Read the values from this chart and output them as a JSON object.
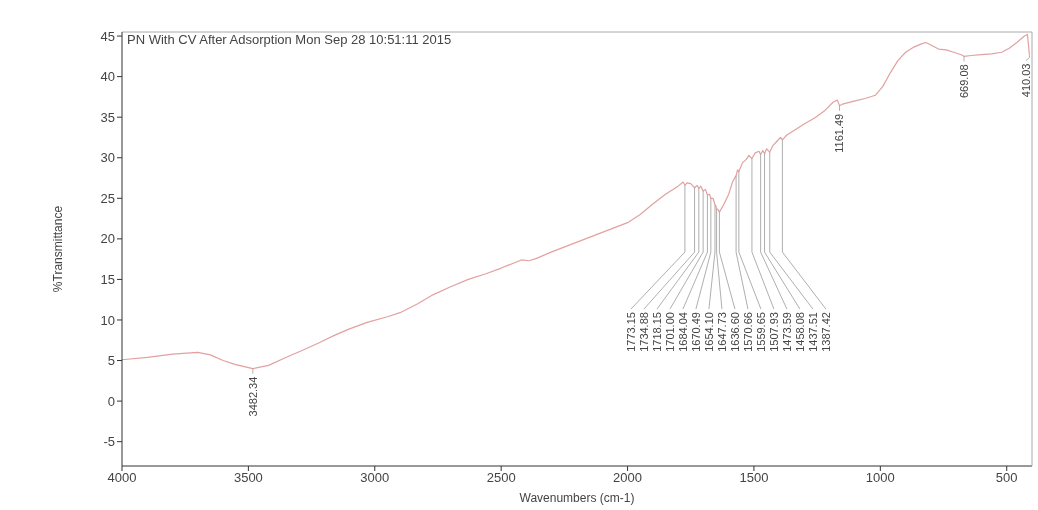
{
  "chart_data": {
    "type": "line",
    "title": "PN With CV After Adsorption Mon Sep 28 10:51:11 2015",
    "xlabel": "Wavenumbers (cm-1)",
    "ylabel": "%Transmittance",
    "color": "#e3a0a0",
    "x": [
      4000,
      3900,
      3800,
      3700,
      3650,
      3600,
      3550,
      3482.34,
      3420,
      3350,
      3290,
      3220,
      3160,
      3100,
      3030,
      2950,
      2900,
      2830,
      2770,
      2700,
      2630,
      2560,
      2500,
      2420,
      2390,
      2360,
      2300,
      2200,
      2100,
      2000,
      1950,
      1900,
      1850,
      1800,
      1780,
      1773.15,
      1765,
      1750,
      1734.88,
      1725,
      1718.15,
      1710,
      1701,
      1692,
      1684.04,
      1676,
      1670.49,
      1662,
      1654.1,
      1650,
      1647.73,
      1642,
      1636.6,
      1620,
      1600,
      1585,
      1570.66,
      1565,
      1559.65,
      1545,
      1530,
      1520,
      1507.93,
      1495,
      1480,
      1473.59,
      1465,
      1458.08,
      1450,
      1437.51,
      1425,
      1410,
      1395,
      1387.42,
      1370,
      1340,
      1300,
      1260,
      1220,
      1185,
      1170,
      1161.49,
      1150,
      1100,
      1060,
      1020,
      990,
      960,
      930,
      900,
      870,
      840,
      820,
      800,
      770,
      740,
      710,
      680,
      669.08,
      640,
      600,
      560,
      520,
      490,
      460,
      430,
      418,
      410.03
    ],
    "values": [
      5.1,
      5.4,
      5.8,
      6.0,
      5.7,
      5.0,
      4.5,
      4.0,
      4.4,
      5.4,
      6.2,
      7.2,
      8.1,
      8.9,
      9.7,
      10.4,
      10.9,
      12.0,
      13.1,
      14.1,
      15.0,
      15.7,
      16.4,
      17.4,
      17.3,
      17.6,
      18.4,
      19.6,
      20.8,
      22.0,
      23.0,
      24.3,
      25.5,
      26.5,
      27.0,
      26.6,
      26.9,
      26.8,
      26.3,
      26.6,
      26.2,
      26.5,
      25.9,
      26.1,
      25.4,
      25.5,
      25.0,
      25.0,
      24.2,
      24.0,
      23.7,
      23.6,
      23.3,
      24.2,
      25.5,
      27.0,
      27.8,
      28.5,
      28.3,
      29.4,
      29.8,
      30.3,
      29.9,
      30.6,
      30.8,
      30.4,
      30.9,
      30.5,
      31.1,
      30.7,
      31.5,
      32.0,
      32.5,
      32.2,
      32.8,
      33.4,
      34.2,
      34.9,
      35.8,
      36.9,
      37.1,
      36.4,
      36.6,
      37.0,
      37.3,
      37.7,
      38.8,
      40.5,
      42.0,
      43.0,
      43.6,
      44.0,
      44.2,
      43.9,
      43.4,
      43.3,
      43.0,
      42.7,
      42.5,
      42.6,
      42.7,
      42.8,
      43.0,
      43.5,
      44.2,
      45.0,
      45.2,
      42.6
    ],
    "xlim": [
      4000,
      400
    ],
    "xticks": [
      4000,
      3500,
      3000,
      2500,
      2000,
      1500,
      1000,
      500
    ],
    "ylim": [
      -8,
      45.5
    ],
    "yticks": [
      -5,
      0,
      5,
      10,
      15,
      20,
      25,
      30,
      35,
      40,
      45
    ],
    "annotations": [
      {
        "text": "3482.34",
        "x": 3482.34,
        "y": 4.0
      },
      {
        "text": "1773.15",
        "x": 1773.15,
        "y": 26.6
      },
      {
        "text": "1734.88",
        "x": 1734.88,
        "y": 26.3
      },
      {
        "text": "1718.15",
        "x": 1718.15,
        "y": 26.2
      },
      {
        "text": "1701.00",
        "x": 1701,
        "y": 25.9
      },
      {
        "text": "1684.04",
        "x": 1684.04,
        "y": 25.4
      },
      {
        "text": "1670.49",
        "x": 1670.49,
        "y": 25.0
      },
      {
        "text": "1654.10",
        "x": 1654.1,
        "y": 24.2
      },
      {
        "text": "1647.73",
        "x": 1647.73,
        "y": 23.7
      },
      {
        "text": "1636.60",
        "x": 1636.6,
        "y": 23.3
      },
      {
        "text": "1570.66",
        "x": 1570.66,
        "y": 27.8
      },
      {
        "text": "1559.65",
        "x": 1559.65,
        "y": 28.3
      },
      {
        "text": "1507.93",
        "x": 1507.93,
        "y": 29.9
      },
      {
        "text": "1473.59",
        "x": 1473.59,
        "y": 30.4
      },
      {
        "text": "1458.08",
        "x": 1458.08,
        "y": 30.5
      },
      {
        "text": "1437.51",
        "x": 1437.51,
        "y": 30.7
      },
      {
        "text": "1387.42",
        "x": 1387.42,
        "y": 32.2
      },
      {
        "text": "1161.49",
        "x": 1161.49,
        "y": 36.4
      },
      {
        "text": "669.08",
        "x": 669.08,
        "y": 42.5
      },
      {
        "text": "410.03",
        "x": 410.03,
        "y": 42.6
      }
    ]
  }
}
